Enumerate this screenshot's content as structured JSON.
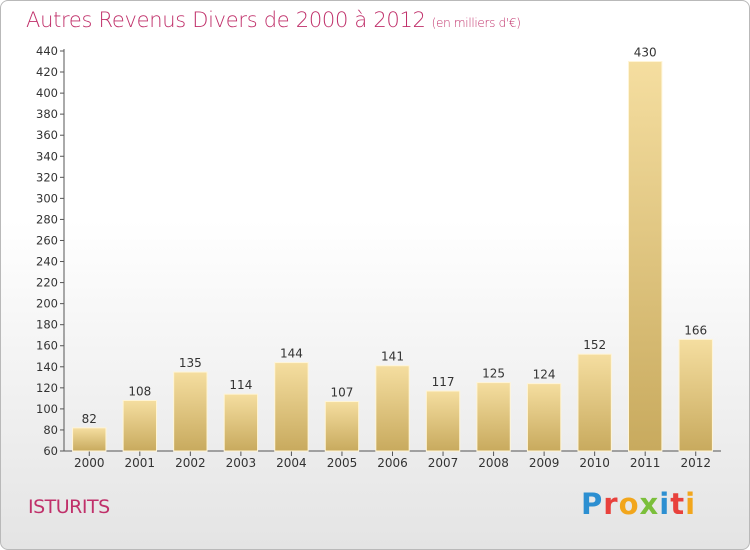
{
  "header": {
    "title": "Autres Revenus Divers de 2000 à 2012",
    "unit": "(en milliers d'€)"
  },
  "footer": {
    "commune": "ISTURITS",
    "logo_letters": [
      "P",
      "r",
      "o",
      "x",
      "i",
      "t",
      "i"
    ]
  },
  "chart_data": {
    "type": "bar",
    "categories": [
      "2000",
      "2001",
      "2002",
      "2003",
      "2004",
      "2005",
      "2006",
      "2007",
      "2008",
      "2009",
      "2010",
      "2011",
      "2012"
    ],
    "values": [
      82,
      108,
      135,
      114,
      144,
      107,
      141,
      117,
      125,
      124,
      152,
      430,
      166
    ],
    "ylim": [
      60,
      440
    ],
    "yticks": [
      60,
      80,
      100,
      120,
      140,
      160,
      180,
      200,
      220,
      240,
      260,
      280,
      300,
      320,
      340,
      360,
      380,
      400,
      420,
      440
    ],
    "grid": false,
    "colors": {
      "bar_light": "#f5dea0",
      "bar_dark": "#c8aa5e",
      "axis": "#555555"
    }
  }
}
